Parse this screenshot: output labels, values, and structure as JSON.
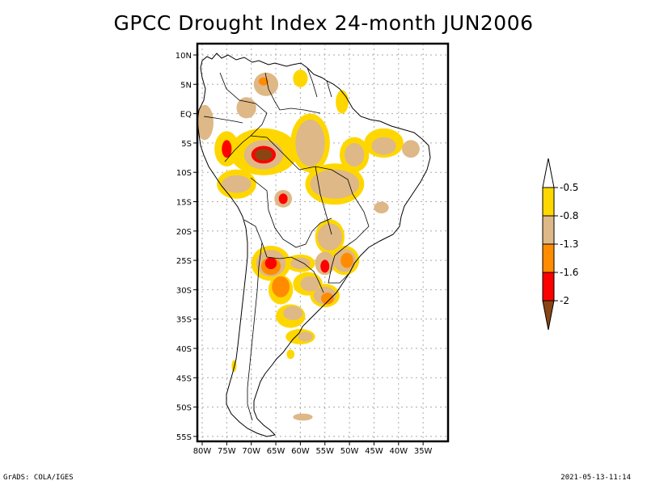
{
  "title": "GPCC Drought Index 24-month JUN2006",
  "footer": {
    "left": "GrADS: COLA/IGES",
    "right": "2021-05-13-11:14"
  },
  "map": {
    "lon_range": [
      -81,
      -32
    ],
    "lat_range": [
      12,
      -56
    ],
    "lat_ticks": [
      {
        "value": 10,
        "label": "10N"
      },
      {
        "value": 5,
        "label": "5N"
      },
      {
        "value": 0,
        "label": "EQ"
      },
      {
        "value": -5,
        "label": "5S"
      },
      {
        "value": -10,
        "label": "10S"
      },
      {
        "value": -15,
        "label": "15S"
      },
      {
        "value": -20,
        "label": "20S"
      },
      {
        "value": -25,
        "label": "25S"
      },
      {
        "value": -30,
        "label": "30S"
      },
      {
        "value": -35,
        "label": "35S"
      },
      {
        "value": -40,
        "label": "40S"
      },
      {
        "value": -45,
        "label": "45S"
      },
      {
        "value": -50,
        "label": "50S"
      },
      {
        "value": -55,
        "label": "55S"
      }
    ],
    "lon_ticks": [
      {
        "value": -80,
        "label": "80W"
      },
      {
        "value": -75,
        "label": "75W"
      },
      {
        "value": -70,
        "label": "70W"
      },
      {
        "value": -65,
        "label": "65W"
      },
      {
        "value": -60,
        "label": "60W"
      },
      {
        "value": -55,
        "label": "55W"
      },
      {
        "value": -50,
        "label": "50W"
      },
      {
        "value": -45,
        "label": "45W"
      },
      {
        "value": -40,
        "label": "40W"
      },
      {
        "value": -35,
        "label": "35W"
      }
    ]
  },
  "colorbar": {
    "levels": [
      {
        "label": "-0.5",
        "color": "#ffd700"
      },
      {
        "label": "-0.8",
        "color": "#deb887"
      },
      {
        "label": "-1.3",
        "color": "#ff8c00"
      },
      {
        "label": "-1.6",
        "color": "#ff0000"
      },
      {
        "label": "-2",
        "color": "#8b4513"
      }
    ],
    "top_arrow_color": "#ffffff",
    "bottom_arrow_color": "#8b4513"
  },
  "regions": [
    {
      "name": "western-amazon",
      "lon": -67.5,
      "lat": -6.5,
      "rx": 7,
      "ry": 4,
      "level": 0
    },
    {
      "name": "western-amazon-core",
      "lon": -67.5,
      "lat": -7,
      "rx": 4,
      "ry": 2.5,
      "level": 1
    },
    {
      "name": "western-amazon-red",
      "lon": -67.5,
      "lat": -7,
      "rx": 2.5,
      "ry": 1.5,
      "level": 3
    },
    {
      "name": "western-amazon-brown",
      "lon": -67.5,
      "lat": -7,
      "rx": 1.8,
      "ry": 1.0,
      "level": 4
    },
    {
      "name": "central-amazon",
      "lon": -58,
      "lat": -5,
      "rx": 4,
      "ry": 5,
      "level": 0
    },
    {
      "name": "central-amazon-core",
      "lon": -58,
      "lat": -5,
      "rx": 3,
      "ry": 4,
      "level": 1
    },
    {
      "name": "peru-north",
      "lon": -75,
      "lat": -6,
      "rx": 2.5,
      "ry": 3,
      "level": 0
    },
    {
      "name": "peru-north-red",
      "lon": -75,
      "lat": -6,
      "rx": 1,
      "ry": 1.5,
      "level": 3
    },
    {
      "name": "peru-central",
      "lon": -73,
      "lat": -12,
      "rx": 4,
      "ry": 2.5,
      "level": 0
    },
    {
      "name": "peru-central-core",
      "lon": -73,
      "lat": -12,
      "rx": 3,
      "ry": 1.5,
      "level": 1
    },
    {
      "name": "ecuador",
      "lon": -79.5,
      "lat": -1.5,
      "rx": 1.8,
      "ry": 3,
      "level": 1
    },
    {
      "name": "colombia",
      "lon": -71,
      "lat": 1,
      "rx": 2,
      "ry": 1.8,
      "level": 1
    },
    {
      "name": "venezuela",
      "lon": -67,
      "lat": 5,
      "rx": 2.5,
      "ry": 2,
      "level": 1
    },
    {
      "name": "venezuela-orange",
      "lon": -67.5,
      "lat": 5.5,
      "rx": 1,
      "ry": 0.7,
      "level": 2
    },
    {
      "name": "guyana",
      "lon": -60,
      "lat": 6,
      "rx": 1.5,
      "ry": 1.5,
      "level": 0
    },
    {
      "name": "amapa",
      "lon": -51.5,
      "lat": 2,
      "rx": 1.3,
      "ry": 2,
      "level": 0
    },
    {
      "name": "bolivia-north",
      "lon": -63.5,
      "lat": -14.5,
      "rx": 1.8,
      "ry": 1.5,
      "level": 1
    },
    {
      "name": "bolivia-north-red",
      "lon": -63.5,
      "lat": -14.5,
      "rx": 0.9,
      "ry": 0.9,
      "level": 3
    },
    {
      "name": "mato-grosso",
      "lon": -53,
      "lat": -12,
      "rx": 6,
      "ry": 3.5,
      "level": 0
    },
    {
      "name": "mato-grosso-core",
      "lon": -53,
      "lat": -12,
      "rx": 5,
      "ry": 2.5,
      "level": 1
    },
    {
      "name": "para-east",
      "lon": -49,
      "lat": -7,
      "rx": 3,
      "ry": 3,
      "level": 0
    },
    {
      "name": "para-east-core",
      "lon": -49,
      "lat": -7,
      "rx": 2,
      "ry": 2,
      "level": 1
    },
    {
      "name": "northeast-brazil",
      "lon": -43,
      "lat": -5,
      "rx": 4,
      "ry": 2.5,
      "level": 0
    },
    {
      "name": "northeast-brazil-core",
      "lon": -43,
      "lat": -5.5,
      "rx": 2.5,
      "ry": 1.5,
      "level": 1
    },
    {
      "name": "rio-grande-norte",
      "lon": -37.5,
      "lat": -6,
      "rx": 1.8,
      "ry": 1.5,
      "level": 1
    },
    {
      "name": "minas",
      "lon": -43.5,
      "lat": -16,
      "rx": 1.5,
      "ry": 1,
      "level": 1
    },
    {
      "name": "goias-south",
      "lon": -54,
      "lat": -21,
      "rx": 3,
      "ry": 3,
      "level": 0
    },
    {
      "name": "goias-south-core",
      "lon": -54,
      "lat": -21,
      "rx": 2.5,
      "ry": 2.3,
      "level": 1
    },
    {
      "name": "parana",
      "lon": -51,
      "lat": -25,
      "rx": 3,
      "ry": 2.5,
      "level": 0
    },
    {
      "name": "parana-core",
      "lon": -51,
      "lat": -25,
      "rx": 2.3,
      "ry": 2,
      "level": 1
    },
    {
      "name": "parana-orange",
      "lon": -50.5,
      "lat": -25,
      "rx": 1.3,
      "ry": 1.3,
      "level": 2
    },
    {
      "name": "paraguay-east",
      "lon": -55,
      "lat": -25.5,
      "rx": 2,
      "ry": 2,
      "level": 1
    },
    {
      "name": "paraguay-east-red",
      "lon": -55,
      "lat": -26,
      "rx": 0.9,
      "ry": 1.1,
      "level": 3
    },
    {
      "name": "argentina-north",
      "lon": -66,
      "lat": -25.5,
      "rx": 4,
      "ry": 3,
      "level": 0
    },
    {
      "name": "argentina-north-core",
      "lon": -66,
      "lat": -25.5,
      "rx": 3,
      "ry": 2.3,
      "level": 1
    },
    {
      "name": "argentina-north-orange",
      "lon": -66,
      "lat": -26,
      "rx": 2,
      "ry": 1.5,
      "level": 2
    },
    {
      "name": "argentina-north-red",
      "lon": -66,
      "lat": -25.5,
      "rx": 1.2,
      "ry": 1,
      "level": 3
    },
    {
      "name": "chaco",
      "lon": -60,
      "lat": -25.5,
      "rx": 3,
      "ry": 1.5,
      "level": 0
    },
    {
      "name": "chaco-core",
      "lon": -60,
      "lat": -25.5,
      "rx": 2,
      "ry": 1,
      "level": 1
    },
    {
      "name": "cordoba",
      "lon": -64,
      "lat": -30,
      "rx": 2.5,
      "ry": 2.5,
      "level": 0
    },
    {
      "name": "cordoba-core",
      "lon": -64,
      "lat": -29.5,
      "rx": 1.8,
      "ry": 1.8,
      "level": 2
    },
    {
      "name": "entre-rios",
      "lon": -58.5,
      "lat": -29,
      "rx": 3,
      "ry": 2,
      "level": 0
    },
    {
      "name": "entre-rios-core",
      "lon": -58,
      "lat": -29,
      "rx": 2,
      "ry": 1.3,
      "level": 1
    },
    {
      "name": "uruguay",
      "lon": -55,
      "lat": -31,
      "rx": 3,
      "ry": 2,
      "level": 0
    },
    {
      "name": "uruguay-core",
      "lon": -55,
      "lat": -31,
      "rx": 2.3,
      "ry": 1.5,
      "level": 1
    },
    {
      "name": "uruguay-orange",
      "lon": -54.5,
      "lat": -31.5,
      "rx": 1.3,
      "ry": 1,
      "level": 2
    },
    {
      "name": "la-pampa",
      "lon": -62,
      "lat": -34.5,
      "rx": 3,
      "ry": 2,
      "level": 0
    },
    {
      "name": "la-pampa-core",
      "lon": -61.5,
      "lat": -34,
      "rx": 2,
      "ry": 1.2,
      "level": 1
    },
    {
      "name": "buenos-aires-south",
      "lon": -60,
      "lat": -38,
      "rx": 3,
      "ry": 1.3,
      "level": 0
    },
    {
      "name": "buenos-aires-south-core",
      "lon": -59,
      "lat": -38,
      "rx": 1.5,
      "ry": 0.8,
      "level": 1
    },
    {
      "name": "patagonia-pt",
      "lon": -62,
      "lat": -41,
      "rx": 0.8,
      "ry": 0.8,
      "level": 0
    },
    {
      "name": "chile-south",
      "lon": -73.5,
      "lat": -43,
      "rx": 0.5,
      "ry": 1,
      "level": 0
    },
    {
      "name": "falklands",
      "lon": -59.5,
      "lat": -51.7,
      "rx": 2,
      "ry": 0.6,
      "level": 1
    }
  ]
}
